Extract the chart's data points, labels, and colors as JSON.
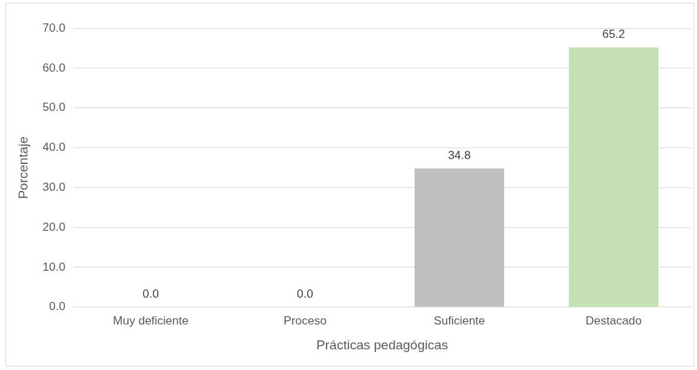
{
  "chart_data": {
    "type": "bar",
    "xlabel": "Prácticas pedagógicas",
    "ylabel": "Porcentaje",
    "categories": [
      "Muy deficiente",
      "Proceso",
      "Suficiente",
      "Destacado"
    ],
    "values": [
      0,
      0,
      34.8,
      65.2
    ],
    "colors": [
      "#bfbfbf",
      "#bfbfbf",
      "#bfbfbf",
      "#c5e0b4"
    ],
    "value_labels": [
      "0.0",
      "0.0",
      "34.8",
      "65.2"
    ],
    "ylim": [
      0,
      70
    ],
    "yticks": [
      {
        "value": 0,
        "label": "0.0"
      },
      {
        "value": 10,
        "label": "10.0"
      },
      {
        "value": 20,
        "label": "20.0"
      },
      {
        "value": 30,
        "label": "30.0"
      },
      {
        "value": 40,
        "label": "40.0"
      },
      {
        "value": 50,
        "label": "50.0"
      },
      {
        "value": 60,
        "label": "60.0"
      },
      {
        "value": 70,
        "label": "70.0"
      }
    ],
    "grid": "y",
    "legend": false
  }
}
